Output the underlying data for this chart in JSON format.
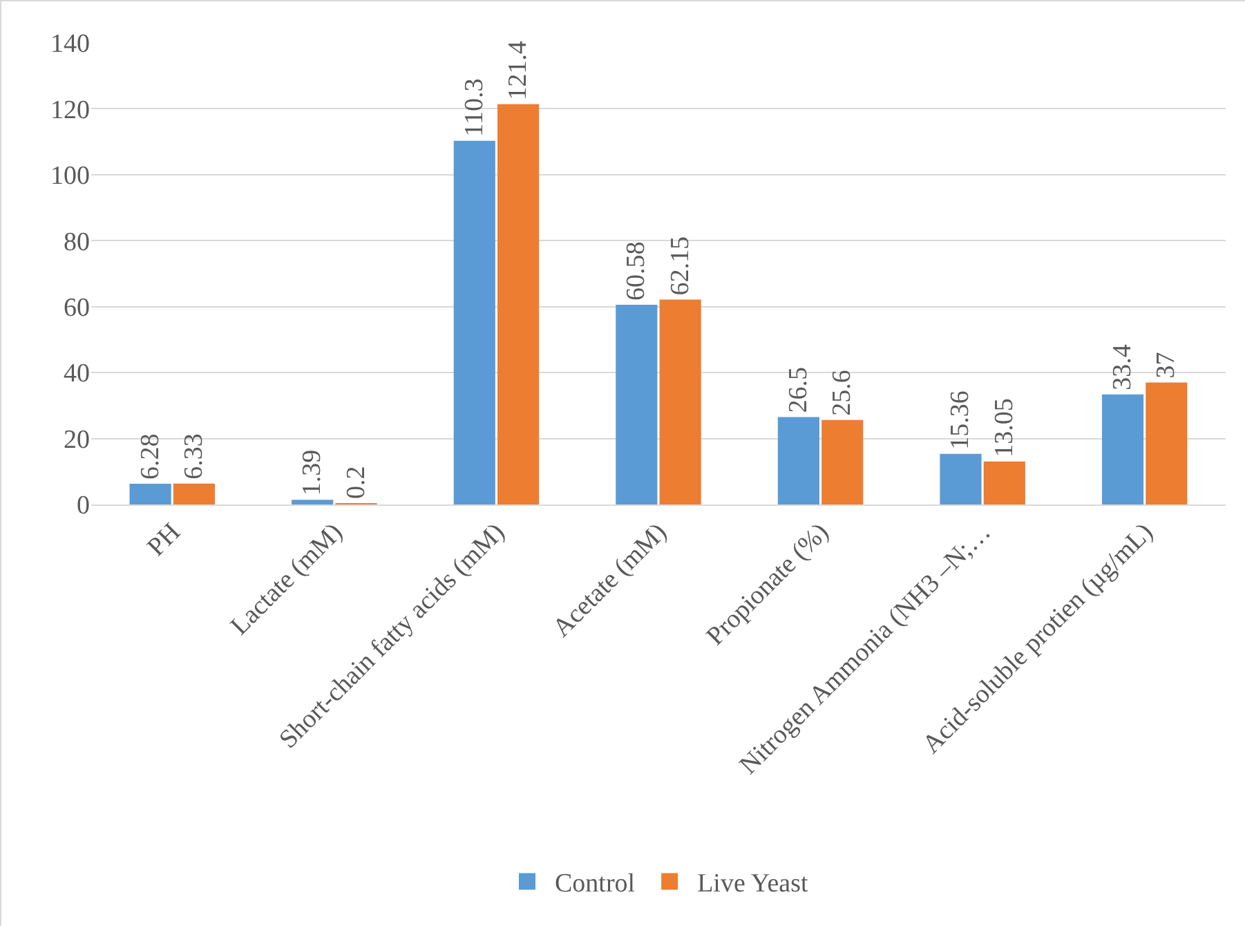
{
  "chart_data": {
    "type": "bar",
    "categories": [
      "PH",
      "Lactate (mM)",
      "Short-chain fatty acids (mM)",
      "Acetate (mM)",
      "Propionate (%)",
      "Nitrogen Ammonia (NH3 –N;…",
      "Acid-soluble protien (µg/mL)"
    ],
    "series": [
      {
        "name": "Control",
        "color": "#5b9bd5",
        "values": [
          6.28,
          1.39,
          110.3,
          60.58,
          26.5,
          15.36,
          33.4
        ]
      },
      {
        "name": "Live Yeast",
        "color": "#ed7d31",
        "values": [
          6.33,
          0.2,
          121.4,
          62.15,
          25.6,
          13.05,
          37
        ]
      }
    ],
    "ylim": [
      0,
      140
    ],
    "yticks": [
      0,
      20,
      40,
      60,
      80,
      100,
      120,
      140
    ],
    "grid": "y",
    "legend": "bottom",
    "data_labels": true
  }
}
